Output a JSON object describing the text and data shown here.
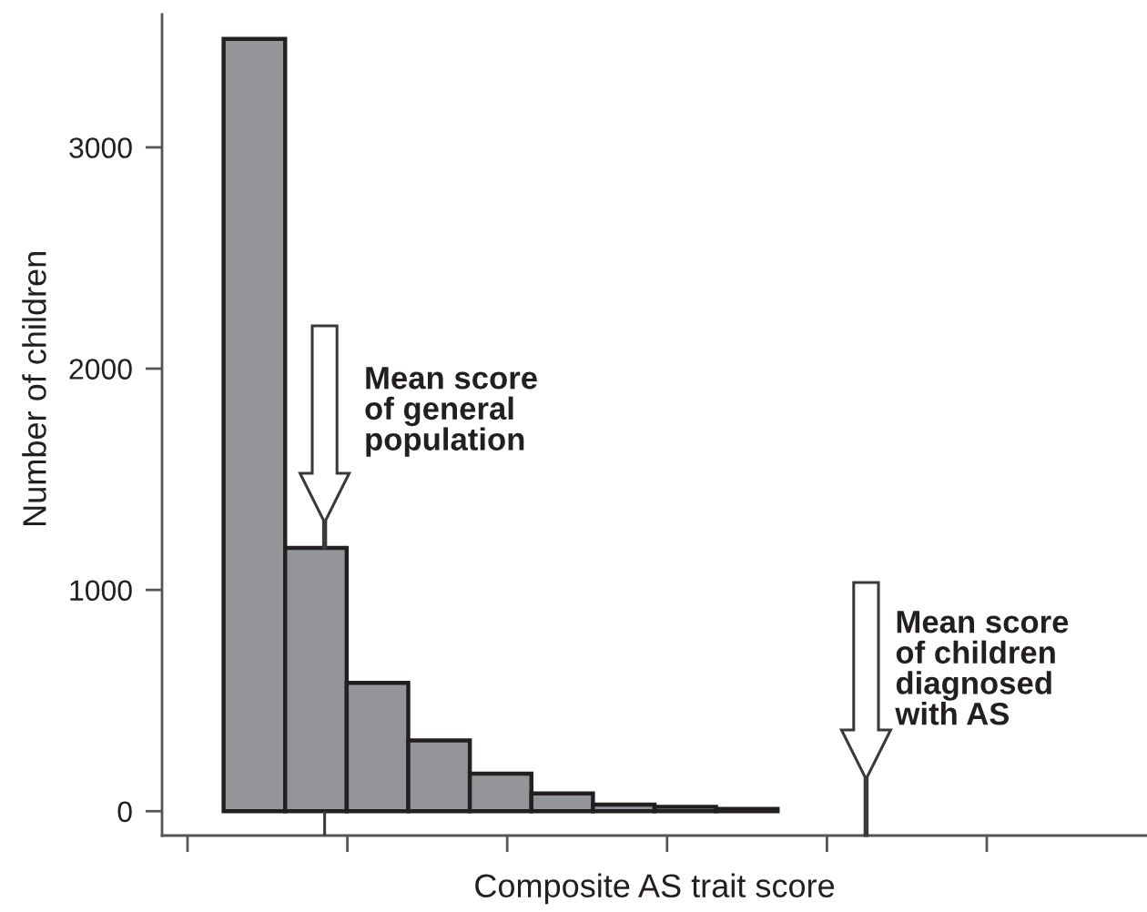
{
  "chart_data": {
    "type": "bar",
    "xlabel": "Composite AS trait score",
    "ylabel": "Number of children",
    "categories": [
      null,
      null,
      null,
      null,
      null,
      null,
      null,
      null,
      null,
      null,
      null,
      null,
      null,
      null,
      null,
      null
    ],
    "values": [
      null,
      3490,
      1190,
      580,
      320,
      170,
      80,
      30,
      20,
      10,
      null,
      null,
      null,
      null,
      null,
      null
    ],
    "color": "#939598",
    "ylim": [
      -110,
      3600
    ],
    "yticks": [
      0,
      1000,
      2000,
      3000
    ],
    "tick_labels": "y",
    "annotations": [
      "Mean score\nof general\npopulation",
      "Mean score\nof children\ndiagnosed\nwith AS"
    ]
  }
}
